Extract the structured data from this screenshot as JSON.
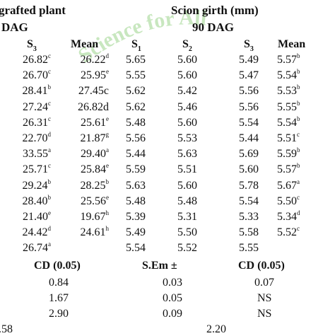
{
  "watermark": {
    "text": "Science for All",
    "color": "#9bd48a"
  },
  "header": {
    "left_title": "grafted plant",
    "right_title": "Scion girth (mm)",
    "left_dag": "DAG",
    "right_dag": "90 DAG",
    "cols": {
      "s3a": {
        "letter": "S",
        "sub": "3"
      },
      "mean_a": "Mean",
      "s1": {
        "letter": "S",
        "sub": "1"
      },
      "s2": {
        "letter": "S",
        "sub": "2"
      },
      "s3b": {
        "letter": "S",
        "sub": "3"
      },
      "mean_b": "Mean"
    }
  },
  "rows": [
    {
      "s3a": "26.82",
      "s3a_sup": "c",
      "mean_a": "26.22",
      "mean_a_sup": "d",
      "s1": "5.65",
      "s2": "5.60",
      "s3b": "5.49",
      "mean_b": "5.57",
      "mean_b_sup": "b"
    },
    {
      "s3a": "26.70",
      "s3a_sup": "c",
      "mean_a": "25.95",
      "mean_a_sup": "e",
      "s1": "5.55",
      "s2": "5.60",
      "s3b": "5.47",
      "mean_b": "5.54",
      "mean_b_sup": "b"
    },
    {
      "s3a": "28.41",
      "s3a_sup": "b",
      "mean_a": "27.45c",
      "mean_a_sup": "",
      "s1": "5.62",
      "s2": "5.42",
      "s3b": "5.56",
      "mean_b": "5.53",
      "mean_b_sup": "b"
    },
    {
      "s3a": "27.24",
      "s3a_sup": "c",
      "mean_a": "26.82d",
      "mean_a_sup": "",
      "s1": "5.62",
      "s2": "5.46",
      "s3b": "5.56",
      "mean_b": "5.55",
      "mean_b_sup": "b"
    },
    {
      "s3a": "26.31",
      "s3a_sup": "c",
      "mean_a": "25.61",
      "mean_a_sup": "e",
      "s1": "5.48",
      "s2": "5.60",
      "s3b": "5.54",
      "mean_b": "5.54",
      "mean_b_sup": "b"
    },
    {
      "s3a": "22.70",
      "s3a_sup": "d",
      "mean_a": "21.87",
      "mean_a_sup": "g",
      "s1": "5.56",
      "s2": "5.53",
      "s3b": "5.44",
      "mean_b": "5.51",
      "mean_b_sup": "c"
    },
    {
      "s3a": "33.55",
      "s3a_sup": "a",
      "mean_a": "29.40",
      "mean_a_sup": "a",
      "s1": "5.44",
      "s2": "5.63",
      "s3b": "5.69",
      "mean_b": "5.59",
      "mean_b_sup": "b"
    },
    {
      "s3a": "25.71",
      "s3a_sup": "c",
      "mean_a": "25.84",
      "mean_a_sup": "e",
      "s1": "5.59",
      "s2": "5.51",
      "s3b": "5.60",
      "mean_b": "5.57",
      "mean_b_sup": "b"
    },
    {
      "s3a": "29.24",
      "s3a_sup": "b",
      "mean_a": "28.25",
      "mean_a_sup": "b",
      "s1": "5.63",
      "s2": "5.60",
      "s3b": "5.78",
      "mean_b": "5.67",
      "mean_b_sup": "a"
    },
    {
      "s3a": "28.40",
      "s3a_sup": "b",
      "mean_a": "25.56",
      "mean_a_sup": "e",
      "s1": "5.48",
      "s2": "5.48",
      "s3b": "5.54",
      "mean_b": "5.50",
      "mean_b_sup": "c"
    },
    {
      "s3a": "21.40",
      "s3a_sup": "e",
      "mean_a": "19.67",
      "mean_a_sup": "h",
      "s1": "5.39",
      "s2": "5.31",
      "s3b": "5.33",
      "mean_b": "5.34",
      "mean_b_sup": "d"
    },
    {
      "s3a": "24.42",
      "s3a_sup": "d",
      "mean_a": "24.61",
      "mean_a_sup": "h",
      "s1": "5.49",
      "s2": "5.50",
      "s3b": "5.58",
      "mean_b": "5.52",
      "mean_b_sup": "c"
    },
    {
      "s3a": "26.74",
      "s3a_sup": "a",
      "mean_a": "",
      "mean_a_sup": "",
      "s1": "5.54",
      "s2": "5.52",
      "s3b": "5.55",
      "mean_b": "",
      "mean_b_sup": ""
    }
  ],
  "stats_header": {
    "cd_a": "CD (0.05)",
    "sem": "S.Em ±",
    "cd_b": "CD (0.05)"
  },
  "stats": [
    {
      "cd_a": "0.84",
      "sem": "0.03",
      "cd_b": "0.07"
    },
    {
      "cd_a": "1.67",
      "sem": "0.05",
      "cd_b": "NS"
    },
    {
      "cd_a": "2.90",
      "sem": "0.09",
      "cd_b": "NS"
    }
  ],
  "cv": {
    "left": ".58",
    "right": "2.20"
  }
}
